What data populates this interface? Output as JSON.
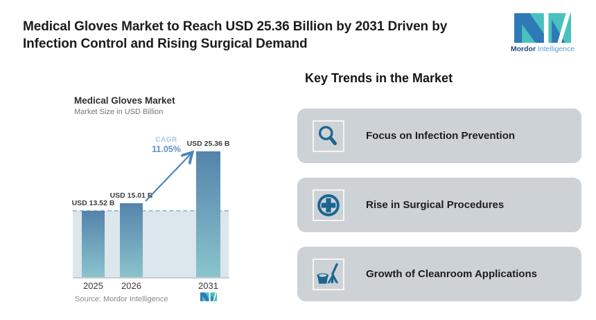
{
  "header": {
    "title_line1": "Medical Gloves Market to Reach USD 25.36 Billion by 2031 Driven by",
    "title_line2": "Infection Control and Rising Surgical Demand"
  },
  "brand": {
    "name_bold": "Mordor",
    "name_light": "Intelligence",
    "colors": {
      "blue": "#2f79b7",
      "teal": "#49c1bd",
      "text_bold": "#1d4a7c",
      "text_light": "#599cd2"
    }
  },
  "chart_data": {
    "type": "bar",
    "title": "Medical Gloves Market",
    "subtitle": "Market Size in USD Billion",
    "categories": [
      "2025",
      "2026",
      "2031"
    ],
    "values": [
      13.52,
      15.01,
      25.36
    ],
    "bar_labels": [
      "USD 13.52 B",
      "USD 15.01 B",
      "USD 25.36 B"
    ],
    "ylabel": "USD Billion",
    "grid": "off",
    "annotations": {
      "cagr_label": "CAGR",
      "cagr_value": "11.05%",
      "arrow": "from 2026 bar top to 2031 bar top",
      "dashed_reference_line": "horizontal at 2025 bar top"
    },
    "source": "Source: Mordor Intelligence",
    "colors": {
      "bar_top": "#5583ab",
      "bar_bottom": "#8ac5cd",
      "band": "#dce6ed",
      "dashed_line": "#9bbfd7",
      "axis": "#c8ccd0",
      "arrow": "#4e87ba",
      "cagr_label": "#a4c5df",
      "cagr_value": "#5d92c4"
    }
  },
  "trends": {
    "heading": "Key Trends in the Market",
    "card_bg": "#cdd2d6",
    "icon_color": "#1a6690",
    "items": [
      {
        "label": "Focus on Infection Prevention",
        "icon": "magnifier-icon"
      },
      {
        "label": "Rise in Surgical Procedures",
        "icon": "medical-cross-icon"
      },
      {
        "label": "Growth of Cleanroom Applications",
        "icon": "broom-bucket-icon"
      }
    ]
  }
}
